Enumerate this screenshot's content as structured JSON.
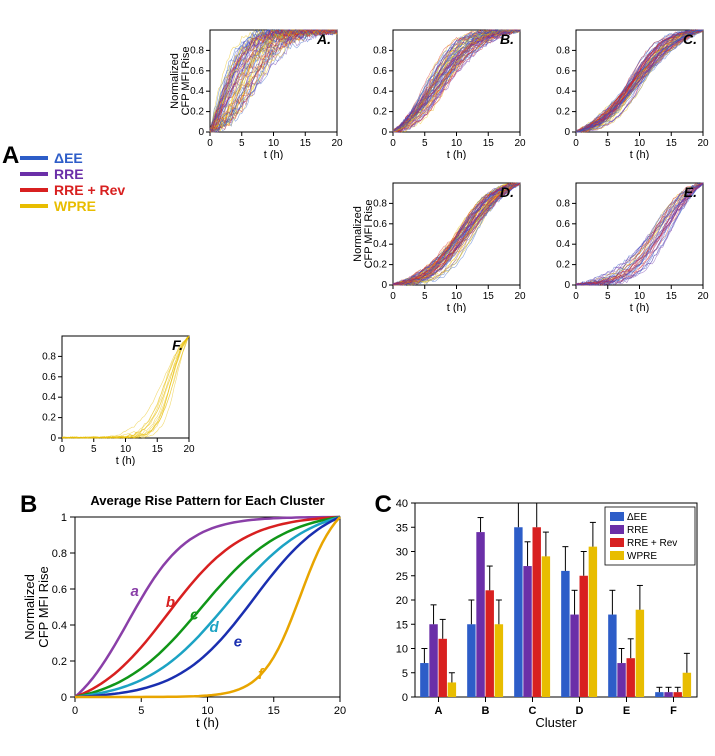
{
  "colors": {
    "dEE": "#2d5dc8",
    "RRE": "#6b2fa8",
    "RRERev": "#d82020",
    "WPRE": "#e8bd00",
    "axis": "#000000",
    "grid": "#666666",
    "bg": "#ffffff",
    "cluster_a": "#8a3fa8",
    "cluster_b": "#d82020",
    "cluster_c": "#109618",
    "cluster_d": "#1ca3c4",
    "cluster_e": "#1a2fb0",
    "cluster_f": "#e8a500"
  },
  "legend": {
    "items": [
      {
        "label": "ΔEE",
        "colorKey": "dEE"
      },
      {
        "label": "RRE",
        "colorKey": "RRE"
      },
      {
        "label": "RRE + Rev",
        "colorKey": "RRERev"
      },
      {
        "label": "WPRE",
        "colorKey": "WPRE"
      }
    ]
  },
  "panelA": {
    "label": "A",
    "ylabel": "Normalized\nCFP MFI Rise",
    "xlabel": "t (h)",
    "xlim": [
      0,
      20
    ],
    "ylim": [
      0,
      1
    ],
    "xticks": [
      0,
      5,
      10,
      15,
      20
    ],
    "yticks": [
      0,
      0.2,
      0.4,
      0.6,
      0.8
    ],
    "label_fontsize": 11,
    "tick_fontsize": 10,
    "subpanels": [
      {
        "tag": "A.",
        "clusterKey": "a",
        "density": "high",
        "colorMix": [
          "RRE",
          "dEE",
          "RRERev",
          "WPRE"
        ],
        "spread": 0.35
      },
      {
        "tag": "B.",
        "clusterKey": "b",
        "density": "high",
        "colorMix": [
          "RRE",
          "dEE",
          "RRERev",
          "WPRE"
        ],
        "spread": 0.18
      },
      {
        "tag": "C.",
        "clusterKey": "c",
        "density": "high",
        "colorMix": [
          "dEE",
          "RRERev",
          "WPRE",
          "RRE"
        ],
        "spread": 0.12
      },
      {
        "tag": "D.",
        "clusterKey": "d",
        "density": "high",
        "colorMix": [
          "RRERev",
          "WPRE",
          "dEE",
          "RRE"
        ],
        "spread": 0.14
      },
      {
        "tag": "E.",
        "clusterKey": "e",
        "density": "med",
        "colorMix": [
          "WPRE",
          "dEE",
          "RRERev",
          "RRE"
        ],
        "spread": 0.15
      },
      {
        "tag": "F.",
        "clusterKey": "f",
        "density": "low",
        "colorMix": [
          "WPRE"
        ],
        "spread": 0.1
      }
    ]
  },
  "panelB": {
    "label": "B",
    "title": "Average Rise Pattern for Each Cluster",
    "ylabel": "Normalized\nCFP MFI Rise",
    "xlabel": "t (h)",
    "xlim": [
      0,
      20
    ],
    "ylim": [
      0,
      1
    ],
    "xticks": [
      0,
      5,
      10,
      15,
      20
    ],
    "yticks": [
      0,
      0.2,
      0.4,
      0.6,
      0.8,
      1
    ],
    "title_fontsize": 13,
    "label_fontsize": 13,
    "tick_fontsize": 11,
    "line_width": 2.5,
    "curves": {
      "a": {
        "half": 4.0,
        "steep": 0.45,
        "labelX": 4.5,
        "labelY": 0.56
      },
      "b": {
        "half": 7.0,
        "steep": 0.35,
        "labelX": 7.2,
        "labelY": 0.5
      },
      "c": {
        "half": 9.5,
        "steep": 0.32,
        "labelX": 9.0,
        "labelY": 0.43
      },
      "d": {
        "half": 11.5,
        "steep": 0.32,
        "labelX": 10.5,
        "labelY": 0.36
      },
      "e": {
        "half": 13.5,
        "steep": 0.35,
        "labelX": 12.3,
        "labelY": 0.28
      },
      "f": {
        "half": 17.0,
        "steep": 0.7,
        "labelX": 14.0,
        "labelY": 0.1
      }
    }
  },
  "panelC": {
    "label": "C",
    "xlabel": "Cluster",
    "xlim_categories": [
      "A",
      "B",
      "C",
      "D",
      "E",
      "F"
    ],
    "ylim": [
      0,
      40
    ],
    "yticks": [
      0,
      5,
      10,
      15,
      20,
      25,
      30,
      35,
      40
    ],
    "label_fontsize": 13,
    "tick_fontsize": 11,
    "bar_width": 0.18,
    "legend_items": [
      "ΔEE",
      "RRE",
      "RRE + Rev",
      "WPRE"
    ],
    "series": {
      "dEE": {
        "values": [
          7,
          15,
          35,
          26,
          17,
          1
        ],
        "errors": [
          3,
          5,
          5,
          5,
          5,
          1
        ]
      },
      "RRE": {
        "values": [
          15,
          34,
          27,
          17,
          7,
          1
        ],
        "errors": [
          4,
          3,
          5,
          5,
          3,
          1
        ]
      },
      "RRERev": {
        "values": [
          12,
          22,
          35,
          25,
          8,
          1
        ],
        "errors": [
          4,
          5,
          5,
          5,
          4,
          1
        ]
      },
      "WPRE": {
        "values": [
          3,
          15,
          29,
          31,
          18,
          5
        ],
        "errors": [
          2,
          5,
          5,
          5,
          5,
          4
        ]
      }
    }
  }
}
